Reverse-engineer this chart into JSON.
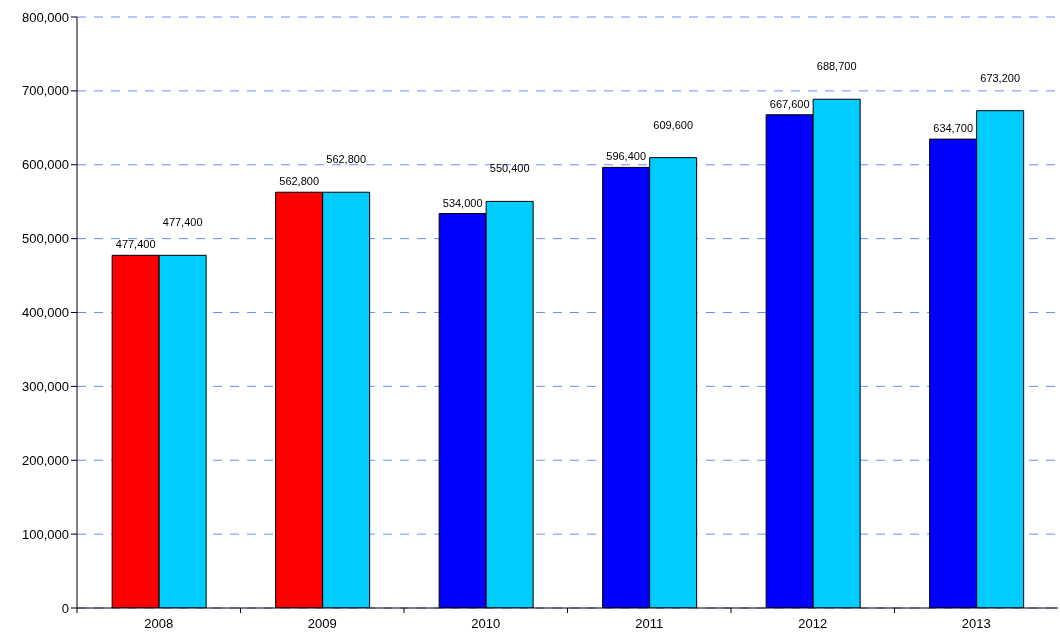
{
  "chart_data": {
    "type": "bar",
    "categories": [
      "2008",
      "2009",
      "2010",
      "2011",
      "2012",
      "2013"
    ],
    "series": [
      {
        "colors": [
          "#ff0000",
          "#ff0000",
          "#0000ff",
          "#0000ff",
          "#0000ff",
          "#0000ff"
        ],
        "values": [
          477400,
          562800,
          534000,
          596400,
          667600,
          634700
        ],
        "value_labels": [
          "477,400",
          "562,800",
          "534,000",
          "596,400",
          "667,600",
          "634,700"
        ]
      },
      {
        "color": "#00ccff",
        "values": [
          477400,
          562800,
          550400,
          609600,
          688700,
          673200
        ],
        "value_labels": [
          "477,400",
          "562,800",
          "550,400",
          "609,600",
          "688,700",
          "673,200"
        ]
      }
    ],
    "ylim": [
      0,
      800000
    ],
    "yticks": [
      {
        "value": 0,
        "label": "0"
      },
      {
        "value": 100000,
        "label": "100,000"
      },
      {
        "value": 200000,
        "label": "200,000"
      },
      {
        "value": 300000,
        "label": "300,000"
      },
      {
        "value": 400000,
        "label": "400,000"
      },
      {
        "value": 500000,
        "label": "500,000"
      },
      {
        "value": 600000,
        "label": "600,000"
      },
      {
        "value": 700000,
        "label": "700,000"
      },
      {
        "value": 800000,
        "label": "800,000"
      }
    ],
    "grid": "y"
  }
}
